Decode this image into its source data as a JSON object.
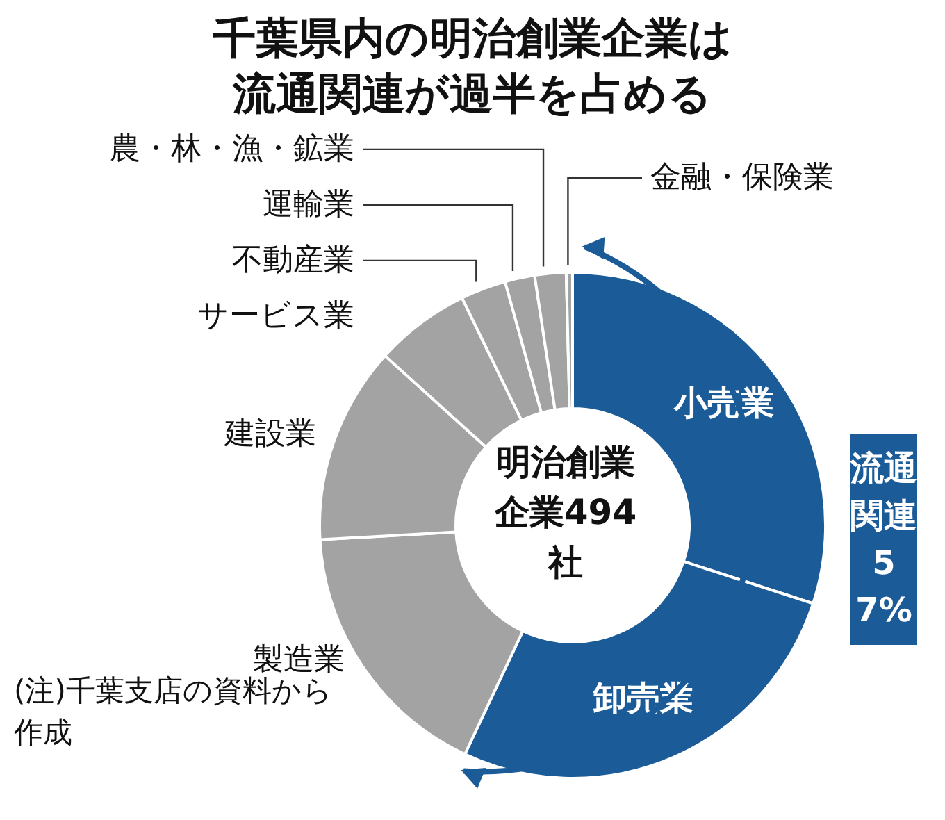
{
  "chart_data": {
    "type": "donut",
    "title": "千葉県内の明治創業企業は流通関連が過半を占める",
    "categories": [
      "小売業",
      "卸売業",
      "製造業",
      "建設業",
      "サービス業",
      "不動産業",
      "運輸業",
      "農・林・漁・鉱業",
      "金融・保険業"
    ],
    "values": [
      30,
      27,
      17.1,
      12.6,
      6.1,
      2.9,
      1.9,
      2.0,
      0.4
    ],
    "colors": [
      "#1b5b97",
      "#1b5b97",
      "#a3a3a3",
      "#a3a3a3",
      "#a3a3a3",
      "#a3a3a3",
      "#a3a3a3",
      "#a3a3a3",
      "#a3a3a3"
    ],
    "annotations": [
      "明治創業企業494社",
      "流通関連57%",
      "(注)千葉支店の資料から作成"
    ]
  }
}
